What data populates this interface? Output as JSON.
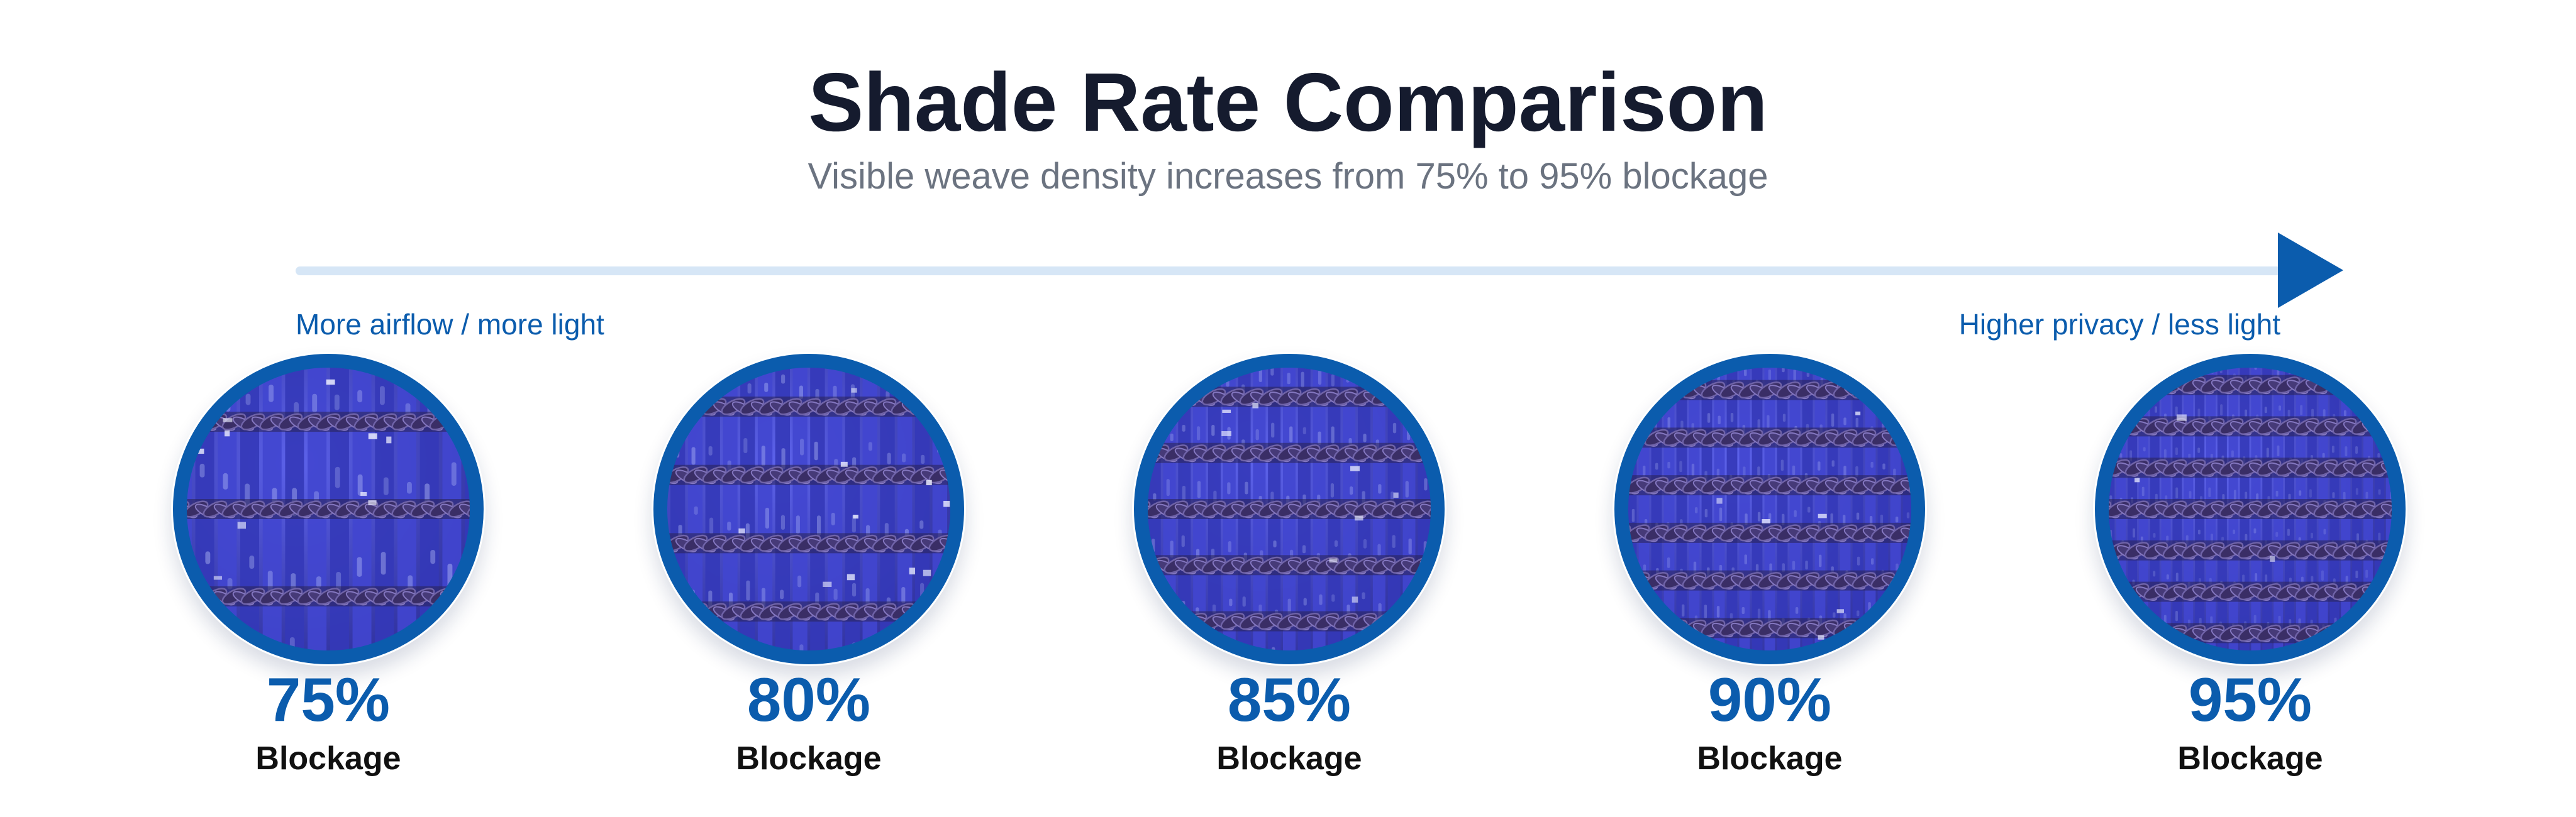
{
  "header": {
    "title": "Shade Rate Comparison",
    "subtitle": "Visible weave density increases from 75% to 95% blockage"
  },
  "scale": {
    "left_label": "More airflow / more light",
    "right_label": "Higher privacy / less light",
    "line_color": "#d6e6f6",
    "arrow_color": "#0b5cad"
  },
  "colors": {
    "accent": "#0b5cad",
    "ring": "#0b5cad",
    "fabric_base": "#3c3fc4",
    "fabric_highlight": "#c9d2ff",
    "cord": "#3a2e66"
  },
  "samples": [
    {
      "percent": "75%",
      "label": "Blockage",
      "density": 0.75
    },
    {
      "percent": "80%",
      "label": "Blockage",
      "density": 0.8
    },
    {
      "percent": "85%",
      "label": "Blockage",
      "density": 0.85
    },
    {
      "percent": "90%",
      "label": "Blockage",
      "density": 0.9
    },
    {
      "percent": "95%",
      "label": "Blockage",
      "density": 0.95
    }
  ]
}
